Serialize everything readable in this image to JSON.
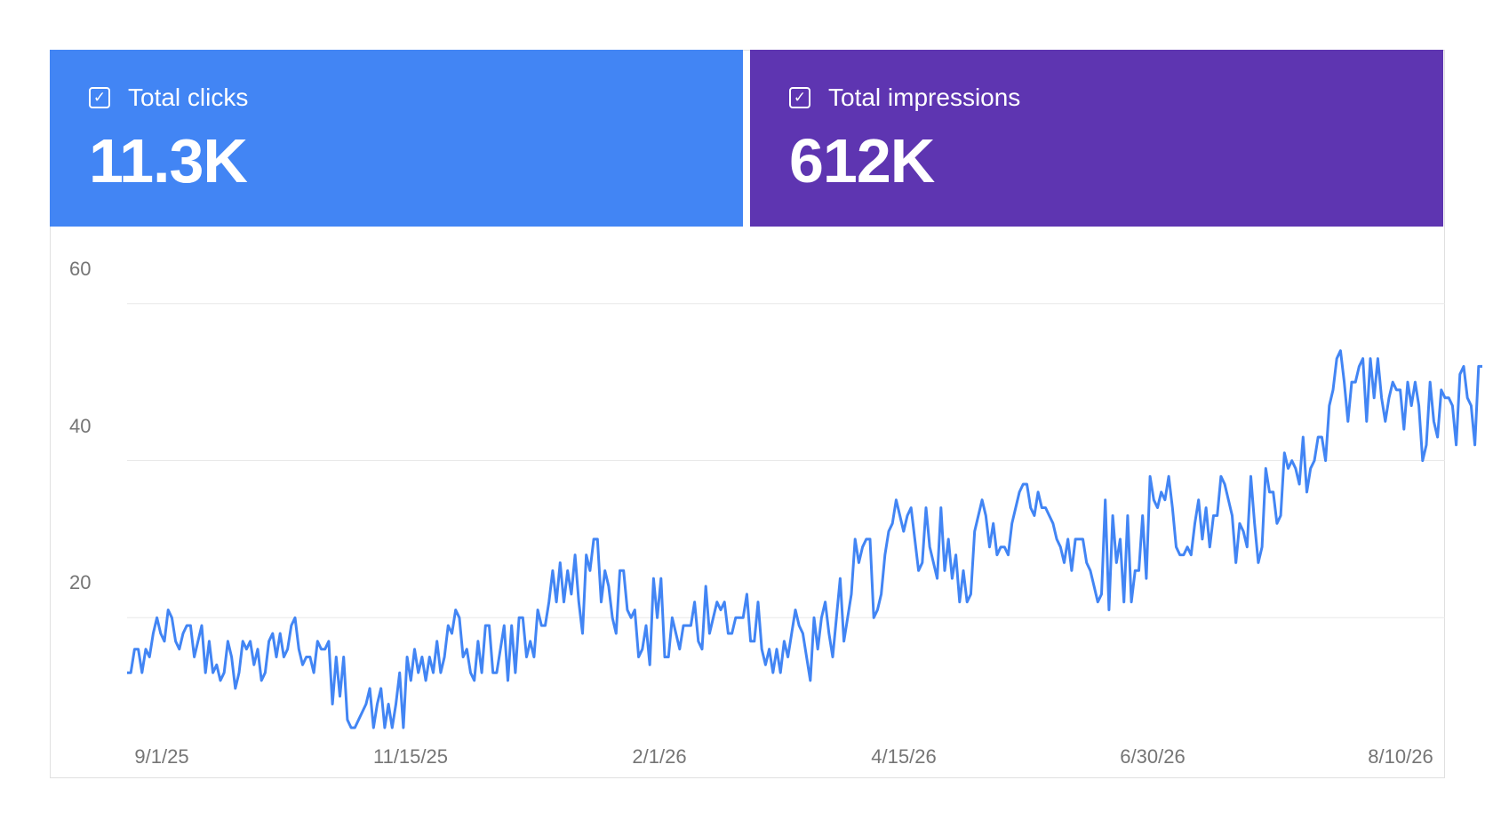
{
  "metrics": [
    {
      "label": "Total clicks",
      "value": "11.3K",
      "checked": true,
      "color": "#4285f4"
    },
    {
      "label": "Total impressions",
      "value": "612K",
      "checked": true,
      "color": "#5e35b1"
    }
  ],
  "icons": {
    "checkbox": "checkbox-checked-icon",
    "check_glyph": "✓"
  },
  "chart_data": {
    "type": "line",
    "series": [
      {
        "color": "#4285f4",
        "x_start": "2025-08-22",
        "x_end": "2026-08-31",
        "values": [
          13,
          13,
          16,
          16,
          13,
          16,
          15,
          18,
          20,
          18,
          17,
          21,
          20,
          17,
          16,
          18,
          19,
          19,
          15,
          17,
          19,
          13,
          17,
          13,
          14,
          12,
          13,
          17,
          15,
          11,
          13,
          17,
          16,
          17,
          14,
          16,
          12,
          13,
          17,
          18,
          15,
          18,
          15,
          16,
          19,
          20,
          16,
          14,
          15,
          15,
          13,
          17,
          16,
          16,
          17,
          9,
          15,
          10,
          15,
          7,
          6,
          6,
          7,
          8,
          9,
          11,
          6,
          9,
          11,
          6,
          9,
          6,
          9,
          13,
          6,
          15,
          12,
          16,
          13,
          15,
          12,
          15,
          13,
          17,
          13,
          15,
          19,
          18,
          21,
          20,
          15,
          16,
          13,
          12,
          17,
          13,
          19,
          19,
          13,
          13,
          16,
          19,
          12,
          19,
          13,
          20,
          20,
          15,
          17,
          15,
          21,
          19,
          19,
          22,
          26,
          22,
          27,
          22,
          26,
          23,
          28,
          22,
          18,
          28,
          26,
          30,
          30,
          22,
          26,
          24,
          20,
          18,
          26,
          26,
          21,
          20,
          21,
          15,
          16,
          19,
          14,
          25,
          20,
          25,
          15,
          15,
          20,
          18,
          16,
          19,
          19,
          19,
          22,
          17,
          16,
          24,
          18,
          20,
          22,
          21,
          22,
          18,
          18,
          20,
          20,
          20,
          23,
          17,
          17,
          22,
          16,
          14,
          16,
          13,
          16,
          13,
          17,
          15,
          18,
          21,
          19,
          18,
          15,
          12,
          20,
          16,
          20,
          22,
          18,
          15,
          20,
          25,
          17,
          20,
          23,
          30,
          27,
          29,
          30,
          30,
          20,
          21,
          23,
          28,
          31,
          32,
          35,
          33,
          31,
          33,
          34,
          30,
          26,
          27,
          34,
          29,
          27,
          25,
          34,
          26,
          30,
          25,
          28,
          22,
          26,
          22,
          23,
          31,
          33,
          35,
          33,
          29,
          32,
          28,
          29,
          29,
          28,
          32,
          34,
          36,
          37,
          37,
          34,
          33,
          36,
          34,
          34,
          33,
          32,
          30,
          29,
          27,
          30,
          26,
          30,
          30,
          30,
          27,
          26,
          24,
          22,
          23,
          35,
          21,
          33,
          27,
          30,
          22,
          33,
          22,
          26,
          26,
          33,
          25,
          38,
          35,
          34,
          36,
          35,
          38,
          34,
          29,
          28,
          28,
          29,
          28,
          32,
          35,
          30,
          34,
          29,
          33,
          33,
          38,
          37,
          35,
          33,
          27,
          32,
          31,
          29,
          38,
          32,
          27,
          29,
          39,
          36,
          36,
          32,
          33,
          41,
          39,
          40,
          39,
          37,
          43,
          36,
          39,
          40,
          43,
          43,
          40,
          47,
          49,
          53,
          54,
          50,
          45,
          50,
          50,
          52,
          53,
          45,
          53,
          48,
          53,
          48,
          45,
          48,
          50,
          49,
          49,
          44,
          50,
          47,
          50,
          47,
          40,
          42,
          50,
          45,
          43,
          49,
          48,
          48,
          47,
          42,
          51,
          52,
          48,
          47,
          42,
          52,
          52
        ]
      }
    ],
    "x_tick_labels": [
      "9/1/25",
      "11/15/25",
      "2/1/26",
      "4/15/26",
      "6/30/26",
      "8/10/26"
    ],
    "y_tick_labels": [
      "60",
      "40",
      "20"
    ],
    "y_gridlines": [
      20,
      40,
      60
    ],
    "ylim": [
      0,
      70
    ],
    "title": "",
    "xlabel": "",
    "ylabel": "",
    "grid": true,
    "legend": "none"
  }
}
